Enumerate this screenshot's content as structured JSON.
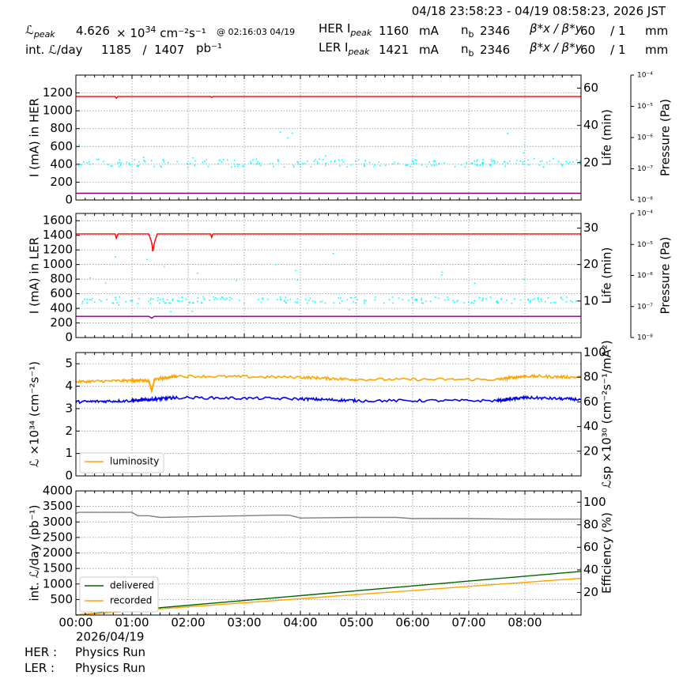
{
  "header": {
    "range": "04/18 23:58:23 - 04/19 08:58:23, 2026 JST",
    "lpeak_label": "ℒ",
    "lpeak_sub": "peak",
    "lpeak_value": "4.626",
    "lpeak_units_pre": "× 10",
    "lpeak_units_exp": "34",
    "lpeak_units_post": "cm⁻²s⁻¹",
    "lpeak_time": "@ 02:16:03 04/19",
    "intl_label": "int. ℒ/day",
    "intl_value": "1185   /  1407",
    "intl_units": "pb⁻¹",
    "her_label": "HER I",
    "ler_label": "LER I",
    "peak_sub": "peak",
    "her_peak": "1160",
    "ler_peak": "1421",
    "current_unit": "mA",
    "nb_label": "n",
    "nb_sub": "b",
    "her_nb": "2346",
    "ler_nb": "2346",
    "beta_label": "β*x / β*y",
    "her_beta": "60    / 1",
    "ler_beta": "60    / 1",
    "beta_unit": "mm"
  },
  "footer": {
    "her_label": "HER :",
    "her_status": "Physics Run",
    "ler_label": "LER :",
    "ler_status": "Physics Run"
  },
  "chart_data": [
    {
      "type": "scatter",
      "title": "",
      "xlabel": "",
      "ylabel": "I (mA) in HER",
      "y2label": "Life (min)",
      "y3label": "Pressure (Pa)",
      "ylim": [
        0,
        1400
      ],
      "yticks": [
        0,
        200,
        400,
        600,
        800,
        1000,
        1200
      ],
      "y2lim": [
        0,
        67
      ],
      "y2ticks": [
        20,
        40,
        60
      ],
      "y3ticks": [
        "10⁻⁸",
        "10⁻⁷",
        "10⁻⁶",
        "10⁻⁵",
        "10⁻⁴"
      ],
      "xlim_hours": [
        0,
        9
      ],
      "series": [
        {
          "role": "current",
          "color": "#ff0000",
          "x": [
            0,
            0.7,
            0.72,
            0.75,
            2.4,
            2.42,
            2.44,
            9
          ],
          "y": [
            1160,
            1160,
            1140,
            1160,
            1160,
            1150,
            1160,
            1160
          ]
        },
        {
          "role": "lifetime",
          "color": "#00ffff",
          "points": "scattered",
          "typical_y": 420,
          "ymin": 360,
          "ymax": 800
        },
        {
          "role": "pressure",
          "color": "#800080",
          "x": [
            0,
            9
          ],
          "y": [
            75,
            75
          ]
        }
      ]
    },
    {
      "type": "scatter",
      "title": "",
      "xlabel": "",
      "ylabel": "I (mA) in LER",
      "y2label": "Life (min)",
      "y3label": "Pressure (Pa)",
      "ylim": [
        0,
        1700
      ],
      "yticks": [
        0,
        200,
        400,
        600,
        800,
        1000,
        1200,
        1400,
        1600
      ],
      "y2lim": [
        0,
        34
      ],
      "y2ticks": [
        10,
        20,
        30
      ],
      "y3ticks": [
        "10⁻⁸",
        "10⁻⁷",
        "10⁻⁶",
        "10⁻⁵",
        "10⁻⁴"
      ],
      "xlim_hours": [
        0,
        9
      ],
      "series": [
        {
          "role": "current",
          "color": "#ff0000",
          "x": [
            0,
            0.7,
            0.72,
            0.75,
            1.3,
            1.35,
            1.37,
            1.4,
            1.45,
            2.4,
            2.42,
            2.44,
            9
          ],
          "y": [
            1420,
            1420,
            1360,
            1420,
            1420,
            1300,
            1180,
            1300,
            1420,
            1420,
            1370,
            1420,
            1420
          ]
        },
        {
          "role": "lifetime",
          "color": "#00ffff",
          "points": "scattered",
          "typical_y": 520,
          "ymin": 330,
          "ymax": 1220
        },
        {
          "role": "pressure",
          "color": "#800080",
          "x": [
            0,
            1.3,
            1.35,
            1.4,
            9
          ],
          "y": [
            290,
            290,
            265,
            290,
            290
          ]
        }
      ]
    },
    {
      "type": "line",
      "title": "",
      "xlabel": "",
      "ylabel": "ℒ ×10³⁴ (cm⁻²s⁻¹)",
      "y2label": "ℒsp ×10³⁰ (cm⁻²s⁻¹/mA²)",
      "ylim": [
        0,
        5.5
      ],
      "yticks": [
        0,
        1,
        2,
        3,
        4,
        5
      ],
      "y2lim": [
        0,
        100
      ],
      "y2ticks": [
        20,
        40,
        60,
        80,
        100
      ],
      "xlim_hours": [
        0,
        9
      ],
      "legend": [
        "luminosity"
      ],
      "legend_loc": "lower-left",
      "series": [
        {
          "name": "luminosity",
          "color": "#ffa500",
          "x": [
            0,
            1.0,
            1.3,
            1.35,
            1.4,
            1.8,
            4.0,
            5.0,
            7.5,
            8.0,
            9.0
          ],
          "y": [
            4.2,
            4.25,
            4.25,
            3.8,
            4.3,
            4.45,
            4.4,
            4.3,
            4.3,
            4.45,
            4.4
          ]
        },
        {
          "role": "specific",
          "color": "#0000ff",
          "x": [
            0,
            1.0,
            1.35,
            1.8,
            4.0,
            5.0,
            7.5,
            8.0,
            9.0
          ],
          "y": [
            60,
            61,
            62,
            63.5,
            62.5,
            61,
            61,
            63.5,
            62
          ]
        }
      ]
    },
    {
      "type": "line",
      "title": "",
      "xlabel": "",
      "ylabel": "int. ℒ/day (pb⁻¹)",
      "y2label": "Efficiency (%)",
      "ylim": [
        0,
        4000
      ],
      "yticks": [
        500,
        1000,
        1500,
        2000,
        2500,
        3000,
        3500,
        4000
      ],
      "y2lim": [
        0,
        110
      ],
      "y2ticks": [
        20,
        40,
        60,
        80,
        100
      ],
      "xlim_hours": [
        0,
        9
      ],
      "xticks": [
        "00:00",
        "01:00",
        "02:00",
        "03:00",
        "04:00",
        "05:00",
        "06:00",
        "07:00",
        "08:00"
      ],
      "xdate": "2026/04/19",
      "legend": [
        "delivered",
        "recorded"
      ],
      "legend_loc": "lower-left",
      "series": [
        {
          "name": "delivered",
          "color": "#006400",
          "x": [
            0,
            9
          ],
          "y": [
            0,
            1407
          ]
        },
        {
          "name": "recorded",
          "color": "#ffa500",
          "x": [
            0,
            9
          ],
          "y": [
            0,
            1185
          ]
        },
        {
          "role": "efficiency",
          "color": "#808080",
          "x": [
            0,
            0.05,
            1.0,
            1.1,
            1.3,
            1.5,
            2.0,
            2.5,
            3.0,
            3.5,
            3.8,
            4.0,
            5.0,
            5.7,
            6.0,
            7.0,
            7.8,
            8.0,
            9.0
          ],
          "y": [
            90,
            91,
            91,
            88,
            88,
            86.5,
            87,
            87.5,
            88,
            88.5,
            88.5,
            86,
            86.5,
            86.5,
            85.5,
            85.5,
            85,
            85,
            85
          ]
        }
      ]
    }
  ]
}
